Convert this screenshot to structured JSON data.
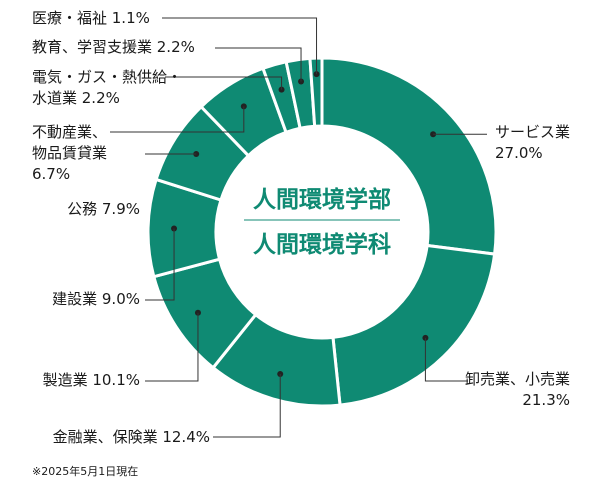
{
  "chart_data": {
    "type": "pie",
    "variant": "donut",
    "categories": [
      "サービス業",
      "卸売業、小売業",
      "金融業、保険業",
      "製造業",
      "建設業",
      "公務",
      "不動産業、物品賃貸業",
      "電気・ガス・熱供給・水道業",
      "教育、学習支援業",
      "医療・福祉"
    ],
    "values": [
      27.0,
      21.3,
      12.4,
      10.1,
      9.0,
      7.9,
      6.7,
      2.2,
      2.2,
      1.1
    ],
    "unit": "%",
    "center_title_1": "人間環境学部",
    "center_title_2": "人間環境学科",
    "footnote": "※2025年5月1日現在",
    "labels": [
      {
        "lines": [
          "サービス業",
          "27.0%"
        ]
      },
      {
        "lines": [
          "卸売業、小売業",
          "21.3%"
        ]
      },
      {
        "lines": [
          "金融業、保険業 12.4%"
        ]
      },
      {
        "lines": [
          "製造業 10.1%"
        ]
      },
      {
        "lines": [
          "建設業 9.0%"
        ]
      },
      {
        "lines": [
          "公務 7.9%"
        ]
      },
      {
        "lines": [
          "不動産業、",
          "物品賃貸業",
          "6.7%"
        ]
      },
      {
        "lines": [
          "電気・ガス・熱供給・",
          "水道業 2.2%"
        ]
      },
      {
        "lines": [
          "教育、学習支援業 2.2%"
        ]
      },
      {
        "lines": [
          "医療・福祉 1.1%"
        ]
      }
    ],
    "colors": {
      "slice": "#0f8a73",
      "separator": "#ffffff",
      "leader": "#333333",
      "center_text": "#0f8a73"
    },
    "legend": "none"
  }
}
